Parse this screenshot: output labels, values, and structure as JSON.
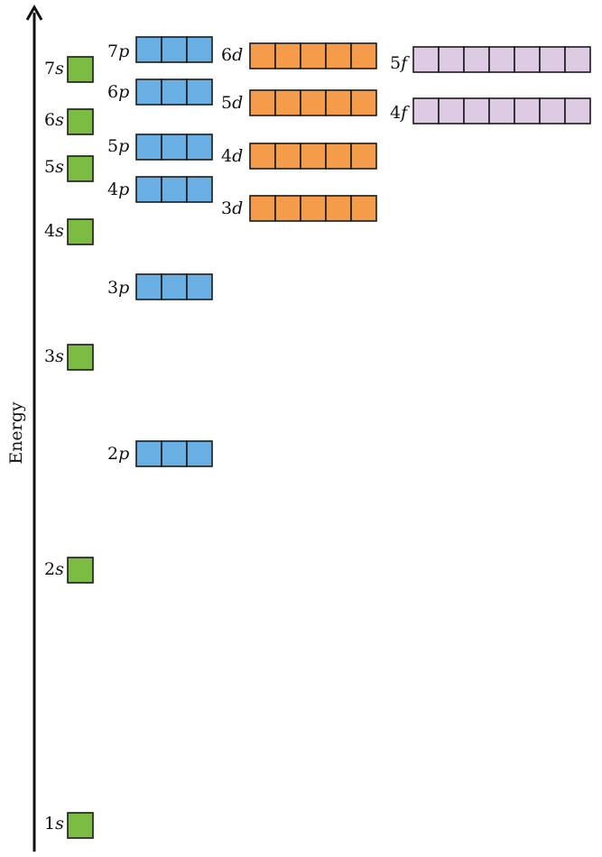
{
  "axis": {
    "label": "Energy"
  },
  "colors": {
    "s": "#7cbc43",
    "p": "#6aafe3",
    "d": "#f59c4a",
    "f": "#dccbe3",
    "stroke": "#1a1a1a"
  },
  "orbitals": [
    {
      "n": "1",
      "l": "s",
      "boxes": 1
    },
    {
      "n": "2",
      "l": "s",
      "boxes": 1
    },
    {
      "n": "2",
      "l": "p",
      "boxes": 3
    },
    {
      "n": "3",
      "l": "s",
      "boxes": 1
    },
    {
      "n": "3",
      "l": "p",
      "boxes": 3
    },
    {
      "n": "4",
      "l": "s",
      "boxes": 1
    },
    {
      "n": "3",
      "l": "d",
      "boxes": 5
    },
    {
      "n": "4",
      "l": "p",
      "boxes": 3
    },
    {
      "n": "5",
      "l": "s",
      "boxes": 1
    },
    {
      "n": "4",
      "l": "d",
      "boxes": 5
    },
    {
      "n": "5",
      "l": "p",
      "boxes": 3
    },
    {
      "n": "6",
      "l": "s",
      "boxes": 1
    },
    {
      "n": "4",
      "l": "f",
      "boxes": 7
    },
    {
      "n": "5",
      "l": "d",
      "boxes": 5
    },
    {
      "n": "6",
      "l": "p",
      "boxes": 3
    },
    {
      "n": "7",
      "l": "s",
      "boxes": 1
    },
    {
      "n": "5",
      "l": "f",
      "boxes": 7
    },
    {
      "n": "6",
      "l": "d",
      "boxes": 5
    },
    {
      "n": "7",
      "l": "p",
      "boxes": 3
    }
  ]
}
